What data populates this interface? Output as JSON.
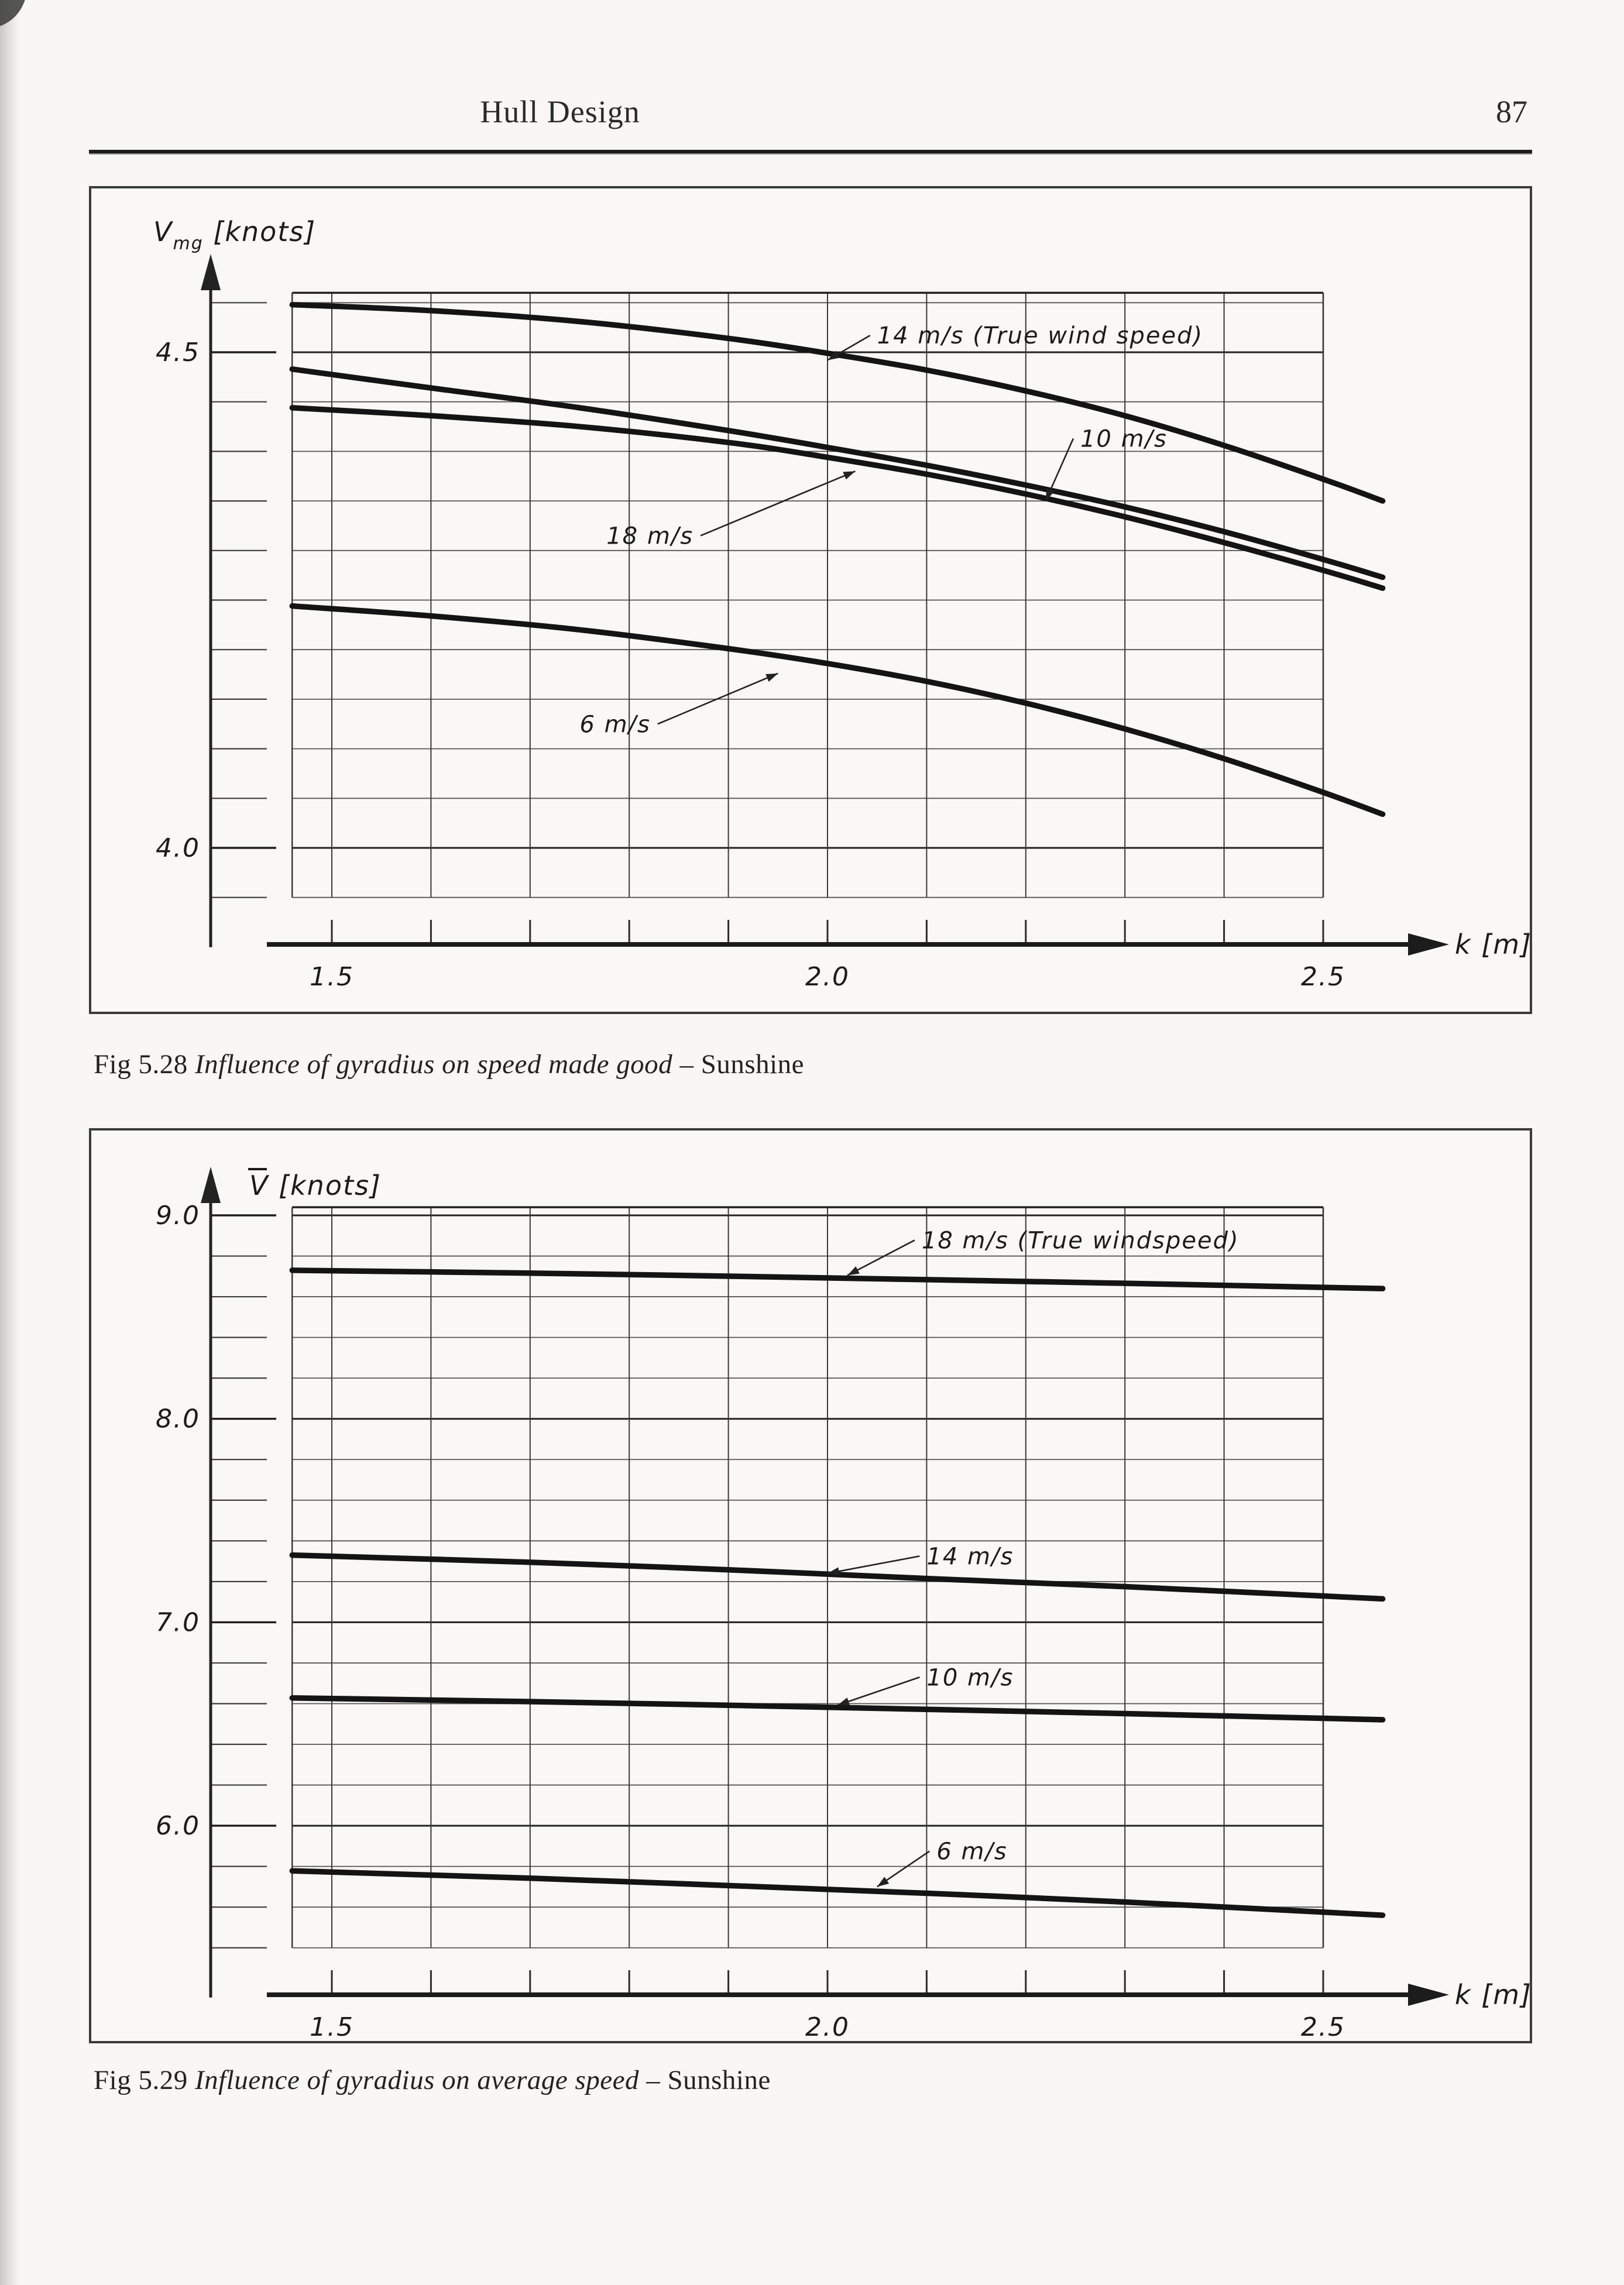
{
  "page": {
    "header_title": "Hull Design",
    "page_number": "87"
  },
  "figures": [
    {
      "caption_fig": "Fig 5.28",
      "caption_italic": "Influence of gyradius on speed made good",
      "caption_tail": "– Sunshine"
    },
    {
      "caption_fig": "Fig 5.29",
      "caption_italic": "Influence of gyradius on average speed",
      "caption_tail": "– Sunshine"
    }
  ],
  "chart_data": [
    {
      "type": "line",
      "title": "Influence of gyradius on speed made good – Sunshine",
      "xlabel": "k [m]",
      "ylabel": "Vmg [knots]",
      "ylabel_main": "V",
      "ylabel_sub": "mg",
      "ylabel_unit": " [knots]",
      "ylabel_overline": false,
      "xlim": [
        1.46,
        2.56
      ],
      "ylim": [
        3.93,
        4.56
      ],
      "grid": true,
      "legend_position": "inline-annotations",
      "x_grid": {
        "min": 1.5,
        "max": 2.5,
        "step": 0.1
      },
      "y_grid": {
        "min": 3.95,
        "max": 4.55,
        "step": 0.05
      },
      "x_ticks_labeled": [
        {
          "v": 1.5,
          "label": "1.5"
        },
        {
          "v": 2.0,
          "label": "2.0"
        },
        {
          "v": 2.5,
          "label": "2.5"
        }
      ],
      "y_ticks_labeled": [
        {
          "v": 4.0,
          "label": "4.0"
        },
        {
          "v": 4.5,
          "label": "4.5"
        }
      ],
      "series": [
        {
          "name": "14 m/s",
          "x": [
            1.46,
            1.6,
            1.75,
            1.9,
            2.0,
            2.1,
            2.2,
            2.3,
            2.4,
            2.5,
            2.56
          ],
          "y": [
            4.548,
            4.542,
            4.531,
            4.514,
            4.499,
            4.482,
            4.461,
            4.436,
            4.406,
            4.372,
            4.35
          ]
        },
        {
          "name": "10 m/s",
          "x": [
            1.46,
            1.6,
            1.75,
            1.9,
            2.0,
            2.1,
            2.2,
            2.3,
            2.4,
            2.5,
            2.56
          ],
          "y": [
            4.483,
            4.464,
            4.444,
            4.421,
            4.404,
            4.386,
            4.366,
            4.344,
            4.319,
            4.291,
            4.273
          ]
        },
        {
          "name": "18 m/s",
          "x": [
            1.46,
            1.6,
            1.75,
            1.9,
            2.0,
            2.1,
            2.2,
            2.3,
            2.4,
            2.5,
            2.56
          ],
          "y": [
            4.444,
            4.436,
            4.425,
            4.409,
            4.394,
            4.377,
            4.357,
            4.334,
            4.308,
            4.28,
            4.262
          ]
        },
        {
          "name": "6 m/s",
          "x": [
            1.46,
            1.6,
            1.75,
            1.9,
            2.0,
            2.1,
            2.2,
            2.3,
            2.4,
            2.5,
            2.56
          ],
          "y": [
            4.244,
            4.234,
            4.22,
            4.201,
            4.186,
            4.168,
            4.146,
            4.12,
            4.09,
            4.056,
            4.034
          ]
        }
      ],
      "annotations": [
        {
          "text": "14 m/s (True wind speed)",
          "series": "14 m/s",
          "tx": 2.05,
          "ty": 4.517,
          "ax": 2.0,
          "ay": 4.492,
          "dash_side": "left"
        },
        {
          "text": "10 m/s",
          "series": "10 m/s",
          "tx": 2.255,
          "ty": 4.413,
          "ax": 2.22,
          "ay": 4.35,
          "dash_side": "left"
        },
        {
          "text": "18 m/s",
          "series": "18 m/s",
          "tx": 1.777,
          "ty": 4.315,
          "ax": 2.028,
          "ay": 4.38,
          "dash_side": "right"
        },
        {
          "text": "6 m/s",
          "series": "6 m/s",
          "tx": 1.75,
          "ty": 4.125,
          "ax": 1.95,
          "ay": 4.176,
          "dash_side": "right"
        }
      ]
    },
    {
      "type": "line",
      "title": "Influence of gyradius on average speed – Sunshine",
      "xlabel": "k [m]",
      "ylabel": "V̄ [knots]",
      "ylabel_main": "V",
      "ylabel_sub": "",
      "ylabel_unit": " [knots]",
      "ylabel_overline": true,
      "xlim": [
        1.46,
        2.56
      ],
      "ylim": [
        5.25,
        9.05
      ],
      "grid": true,
      "legend_position": "inline-annotations",
      "x_grid": {
        "min": 1.5,
        "max": 2.5,
        "step": 0.1
      },
      "y_grid": {
        "min": 5.4,
        "max": 9.0,
        "step": 0.2
      },
      "x_ticks_labeled": [
        {
          "v": 1.5,
          "label": "1.5"
        },
        {
          "v": 2.0,
          "label": "2.0"
        },
        {
          "v": 2.5,
          "label": "2.5"
        }
      ],
      "y_ticks_labeled": [
        {
          "v": 6.0,
          "label": "6.0"
        },
        {
          "v": 7.0,
          "label": "7.0"
        },
        {
          "v": 8.0,
          "label": "8.0"
        },
        {
          "v": 9.0,
          "label": "9.0"
        }
      ],
      "series": [
        {
          "name": "18 m/s",
          "x": [
            1.46,
            1.7,
            1.9,
            2.1,
            2.3,
            2.56
          ],
          "y": [
            8.73,
            8.716,
            8.701,
            8.684,
            8.666,
            8.64
          ]
        },
        {
          "name": "14 m/s",
          "x": [
            1.46,
            1.7,
            1.9,
            2.1,
            2.3,
            2.56
          ],
          "y": [
            7.33,
            7.295,
            7.258,
            7.215,
            7.175,
            7.115
          ]
        },
        {
          "name": "10 m/s",
          "x": [
            1.46,
            1.7,
            1.9,
            2.1,
            2.3,
            2.56
          ],
          "y": [
            6.628,
            6.61,
            6.592,
            6.572,
            6.551,
            6.521
          ]
        },
        {
          "name": "6 m/s",
          "x": [
            1.46,
            1.7,
            1.9,
            2.1,
            2.3,
            2.56
          ],
          "y": [
            5.778,
            5.742,
            5.706,
            5.668,
            5.625,
            5.56
          ]
        }
      ],
      "annotations": [
        {
          "text": "18 m/s (True windspeed)",
          "series": "18 m/s",
          "tx": 2.095,
          "ty": 8.878,
          "ax": 2.02,
          "ay": 8.705,
          "dash_side": "left"
        },
        {
          "text": "14 m/s",
          "series": "14 m/s",
          "tx": 2.1,
          "ty": 7.325,
          "ax": 2.0,
          "ay": 7.24,
          "dash_side": "left"
        },
        {
          "text": "10 m/s",
          "series": "10 m/s",
          "tx": 2.1,
          "ty": 6.73,
          "ax": 2.01,
          "ay": 6.592,
          "dash_side": "left"
        },
        {
          "text": "6 m/s",
          "series": "6 m/s",
          "tx": 2.11,
          "ty": 5.875,
          "ax": 2.05,
          "ay": 5.7,
          "dash_side": "left"
        }
      ]
    }
  ],
  "colors": {
    "ink": "#1b1b1b",
    "curve": "#141414",
    "grid_minor": "#555555",
    "grid_major": "#222222",
    "page_bg": "#f8f7f3"
  }
}
